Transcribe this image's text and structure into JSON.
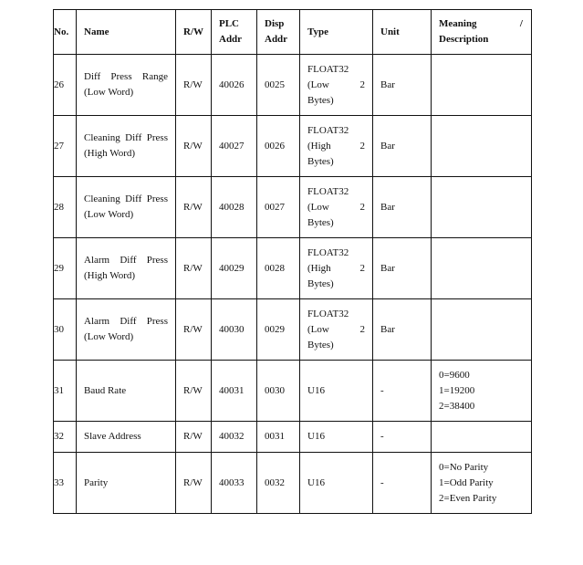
{
  "headers": {
    "no": "No.",
    "name": "Name",
    "rw": "R/W",
    "plc": "PLC Addr",
    "disp": "Disp Addr",
    "type": "Type",
    "unit": "Unit",
    "meaning": "Meaning / Description"
  },
  "rows": [
    {
      "no": "26",
      "name": "Diff Press Range (Low Word)",
      "rw": "R/W",
      "plc": "40026",
      "disp": "0025",
      "type": "FLOAT32 (Low 2 Bytes)",
      "unit": "Bar",
      "meaning": ""
    },
    {
      "no": "27",
      "name": "Cleaning Diff Press (High Word)",
      "rw": "R/W",
      "plc": "40027",
      "disp": "0026",
      "type": "FLOAT32 (High 2 Bytes)",
      "unit": "Bar",
      "meaning": ""
    },
    {
      "no": "28",
      "name": "Cleaning Diff Press (Low Word)",
      "rw": "R/W",
      "plc": "40028",
      "disp": "0027",
      "type": "FLOAT32 (Low 2 Bytes)",
      "unit": "Bar",
      "meaning": ""
    },
    {
      "no": "29",
      "name": "Alarm Diff Press (High Word)",
      "rw": "R/W",
      "plc": "40029",
      "disp": "0028",
      "type": "FLOAT32 (High 2 Bytes)",
      "unit": "Bar",
      "meaning": ""
    },
    {
      "no": "30",
      "name": "Alarm Diff Press (Low Word)",
      "rw": "R/W",
      "plc": "40030",
      "disp": "0029",
      "type": "FLOAT32 (Low 2 Bytes)",
      "unit": "Bar",
      "meaning": ""
    },
    {
      "no": "31",
      "name": "Baud Rate",
      "rw": "R/W",
      "plc": "40031",
      "disp": "0030",
      "type": "U16",
      "unit": "-",
      "meaning": "0=9600\n1=19200\n2=38400"
    },
    {
      "no": "32",
      "name": "Slave Address",
      "rw": "R/W",
      "plc": "40032",
      "disp": "0031",
      "type": "U16",
      "unit": "-",
      "meaning": ""
    },
    {
      "no": "33",
      "name": "Parity",
      "rw": "R/W",
      "plc": "40033",
      "disp": "0032",
      "type": "U16",
      "unit": "-",
      "meaning": "0=No Parity\n1=Odd Parity\n2=Even Parity"
    }
  ]
}
